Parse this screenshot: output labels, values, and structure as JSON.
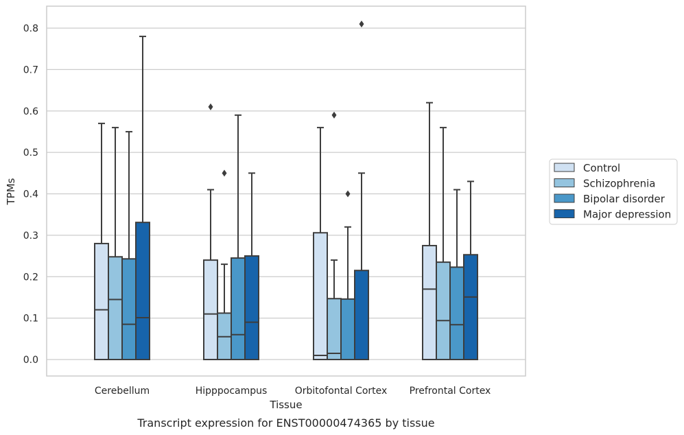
{
  "chart_data": {
    "type": "boxplot",
    "caption": "Transcript expression for ENST00000474365 by tissue",
    "xlabel": "Tissue",
    "ylabel": "TPMs",
    "ylim": [
      -0.04,
      0.85
    ],
    "yticks": [
      "0.0",
      "0.1",
      "0.2",
      "0.3",
      "0.4",
      "0.5",
      "0.6",
      "0.7",
      "0.8"
    ],
    "ytick_values": [
      0,
      0.1,
      0.2,
      0.3,
      0.4,
      0.5,
      0.6,
      0.7,
      0.8
    ],
    "grid": "horizontal",
    "legend_position": "right",
    "categories": [
      "Cerebellum",
      "Hipppocampus",
      "Orbitofontal Cortex",
      "Prefrontal Cortex"
    ],
    "series": [
      {
        "name": "Control",
        "color": "#d0e1f2",
        "boxes": [
          {
            "min": 0,
            "q1": 0,
            "median": 0.12,
            "q3": 0.28,
            "max": 0.57,
            "outliers": []
          },
          {
            "min": 0,
            "q1": 0,
            "median": 0.11,
            "q3": 0.24,
            "max": 0.41,
            "outliers": [
              0.61
            ]
          },
          {
            "min": 0,
            "q1": 0,
            "median": 0.01,
            "q3": 0.306,
            "max": 0.56,
            "outliers": []
          },
          {
            "min": 0,
            "q1": 0,
            "median": 0.17,
            "q3": 0.275,
            "max": 0.62,
            "outliers": []
          }
        ]
      },
      {
        "name": "Schizophrenia",
        "color": "#94c4df",
        "boxes": [
          {
            "min": 0,
            "q1": 0,
            "median": 0.145,
            "q3": 0.248,
            "max": 0.56,
            "outliers": []
          },
          {
            "min": 0,
            "q1": 0,
            "median": 0.055,
            "q3": 0.112,
            "max": 0.23,
            "outliers": [
              0.45
            ]
          },
          {
            "min": 0,
            "q1": 0,
            "median": 0.015,
            "q3": 0.147,
            "max": 0.24,
            "outliers": [
              0.59
            ]
          },
          {
            "min": 0,
            "q1": 0,
            "median": 0.094,
            "q3": 0.235,
            "max": 0.56,
            "outliers": []
          }
        ]
      },
      {
        "name": "Bipolar disorder",
        "color": "#4a98c9",
        "boxes": [
          {
            "min": 0,
            "q1": 0,
            "median": 0.085,
            "q3": 0.243,
            "max": 0.55,
            "outliers": []
          },
          {
            "min": 0,
            "q1": 0,
            "median": 0.06,
            "q3": 0.245,
            "max": 0.59,
            "outliers": []
          },
          {
            "min": 0,
            "q1": 0,
            "median": 0,
            "q3": 0.146,
            "max": 0.32,
            "outliers": [
              0.4
            ]
          },
          {
            "min": 0,
            "q1": 0,
            "median": 0.084,
            "q3": 0.223,
            "max": 0.41,
            "outliers": []
          }
        ]
      },
      {
        "name": "Major depression",
        "color": "#1764ab",
        "boxes": [
          {
            "min": 0,
            "q1": 0,
            "median": 0.101,
            "q3": 0.331,
            "max": 0.78,
            "outliers": []
          },
          {
            "min": 0,
            "q1": 0,
            "median": 0.09,
            "q3": 0.25,
            "max": 0.45,
            "outliers": []
          },
          {
            "min": 0,
            "q1": 0,
            "median": 0,
            "q3": 0.215,
            "max": 0.45,
            "outliers": [
              0.81
            ]
          },
          {
            "min": 0,
            "q1": 0,
            "median": 0.151,
            "q3": 0.253,
            "max": 0.43,
            "outliers": []
          }
        ]
      }
    ]
  }
}
